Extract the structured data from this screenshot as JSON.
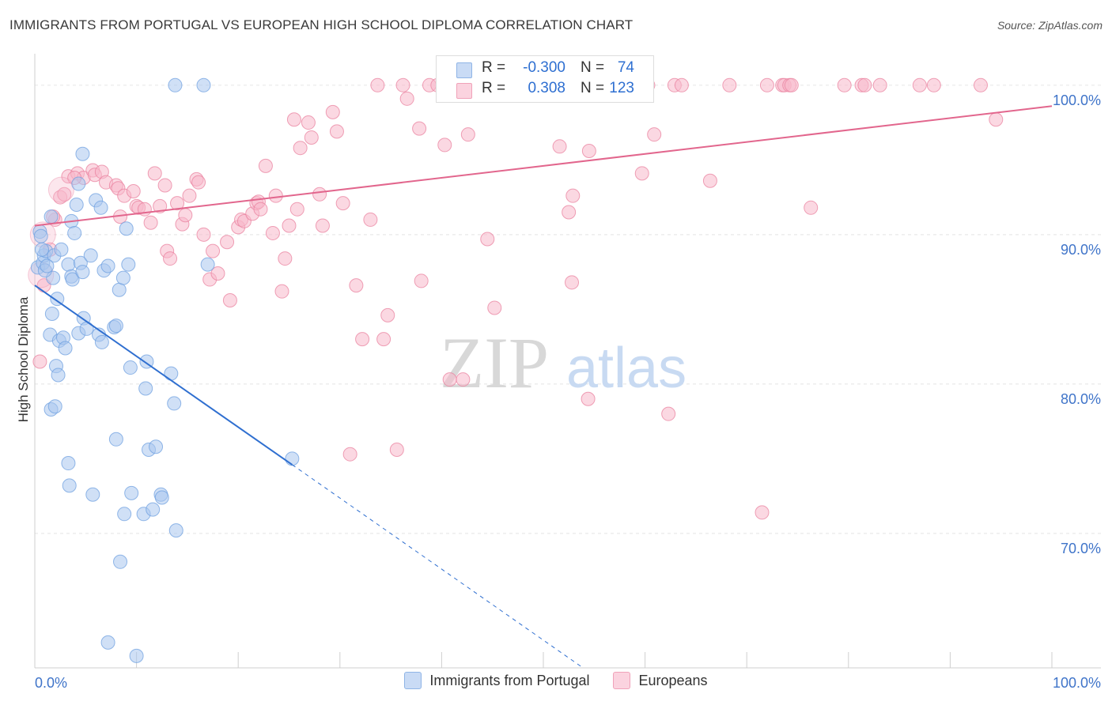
{
  "title": "IMMIGRANTS FROM PORTUGAL VS EUROPEAN HIGH SCHOOL DIPLOMA CORRELATION CHART",
  "source": "Source: ZipAtlas.com",
  "watermark": {
    "zip": "ZIP",
    "atlas": "atlas"
  },
  "stats": {
    "series1": {
      "r_label": "R =",
      "r_value": "-0.300",
      "n_label": "N =",
      "n_value": "74",
      "color": "#a9c6ef"
    },
    "series2": {
      "r_label": "R =",
      "r_value": "0.308",
      "n_label": "N =",
      "n_value": "123",
      "color": "#f7b8cb"
    }
  },
  "legend": {
    "series1": "Immigrants from Portugal",
    "series2": "Europeans"
  },
  "chart_data": {
    "type": "scatter",
    "title": "IMMIGRANTS FROM PORTUGAL VS EUROPEAN HIGH SCHOOL DIPLOMA CORRELATION CHART",
    "xlabel": "",
    "ylabel": "High School Diploma",
    "xlim": [
      0,
      100
    ],
    "ylim": [
      61,
      102
    ],
    "x_tick_labels": [
      "0.0%",
      "100.0%"
    ],
    "y_ticks": [
      70,
      80,
      90,
      100
    ],
    "y_tick_labels": [
      "70.0%",
      "80.0%",
      "90.0%",
      "100.0%"
    ],
    "grid": true,
    "series": [
      {
        "name": "Immigrants from Portugal",
        "color": "#6fa0e0",
        "fill": "#a9c6ef",
        "trend": {
          "x": [
            0,
            25.3
          ],
          "y": [
            86.6,
            74.6
          ],
          "dashed_to": [
            53.9,
            61.0
          ]
        },
        "points": [
          [
            0.3,
            87.8
          ],
          [
            0.8,
            88.1
          ],
          [
            0.5,
            90.2
          ],
          [
            0.6,
            89.9
          ],
          [
            0.9,
            88.6
          ],
          [
            1.1,
            88.9
          ],
          [
            1.6,
            91.2
          ],
          [
            1.9,
            88.6
          ],
          [
            1.5,
            83.3
          ],
          [
            1.7,
            84.7
          ],
          [
            1.8,
            87.1
          ],
          [
            2.2,
            85.7
          ],
          [
            2.4,
            82.9
          ],
          [
            2.1,
            81.2
          ],
          [
            2.3,
            80.6
          ],
          [
            1.6,
            78.3
          ],
          [
            2.0,
            78.5
          ],
          [
            3.3,
            88.0
          ],
          [
            3.6,
            90.9
          ],
          [
            3.9,
            90.1
          ],
          [
            4.1,
            92.0
          ],
          [
            4.3,
            93.4
          ],
          [
            4.7,
            95.4
          ],
          [
            3.6,
            87.2
          ],
          [
            3.7,
            87.0
          ],
          [
            4.5,
            88.1
          ],
          [
            4.7,
            87.5
          ],
          [
            5.5,
            88.6
          ],
          [
            4.3,
            83.4
          ],
          [
            4.8,
            84.4
          ],
          [
            5.1,
            83.7
          ],
          [
            6.3,
            83.3
          ],
          [
            6.6,
            82.8
          ],
          [
            6.0,
            92.3
          ],
          [
            6.5,
            91.8
          ],
          [
            6.8,
            87.6
          ],
          [
            7.2,
            87.9
          ],
          [
            7.8,
            83.8
          ],
          [
            8.0,
            83.9
          ],
          [
            8.3,
            86.3
          ],
          [
            8.7,
            87.1
          ],
          [
            9.0,
            90.4
          ],
          [
            9.2,
            88.0
          ],
          [
            9.4,
            81.1
          ],
          [
            11.0,
            81.5
          ],
          [
            10.9,
            79.7
          ],
          [
            11.2,
            75.6
          ],
          [
            11.9,
            75.8
          ],
          [
            12.4,
            72.6
          ],
          [
            12.5,
            72.4
          ],
          [
            13.4,
            80.7
          ],
          [
            13.7,
            78.7
          ],
          [
            13.9,
            70.2
          ],
          [
            8.0,
            76.3
          ],
          [
            3.3,
            74.7
          ],
          [
            3.4,
            73.2
          ],
          [
            5.7,
            72.6
          ],
          [
            8.8,
            71.3
          ],
          [
            9.5,
            72.7
          ],
          [
            10.7,
            71.3
          ],
          [
            11.6,
            71.6
          ],
          [
            8.4,
            68.1
          ],
          [
            7.2,
            62.7
          ],
          [
            10.0,
            61.8
          ],
          [
            17.0,
            88.0
          ],
          [
            16.6,
            100
          ],
          [
            13.8,
            100
          ],
          [
            25.3,
            75.0
          ],
          [
            1.0,
            87.6
          ],
          [
            2.8,
            83.1
          ],
          [
            3.0,
            82.4
          ],
          [
            2.6,
            89.0
          ],
          [
            0.7,
            89.0
          ],
          [
            1.2,
            87.9
          ]
        ]
      },
      {
        "name": "Europeans",
        "color": "#e9829f",
        "fill": "#f7b8cb",
        "trend": {
          "x": [
            0,
            100
          ],
          "y": [
            90.6,
            98.6
          ]
        },
        "points": [
          [
            0.5,
            81.5
          ],
          [
            0.9,
            86.6
          ],
          [
            1.5,
            89.0
          ],
          [
            2.0,
            91.0
          ],
          [
            2.5,
            92.5
          ],
          [
            3.3,
            93.9
          ],
          [
            4.2,
            94.1
          ],
          [
            4.8,
            93.8
          ],
          [
            5.7,
            94.3
          ],
          [
            5.9,
            94.0
          ],
          [
            6.6,
            94.2
          ],
          [
            7.0,
            93.5
          ],
          [
            8.0,
            93.3
          ],
          [
            8.2,
            93.1
          ],
          [
            8.4,
            91.2
          ],
          [
            8.8,
            92.6
          ],
          [
            9.7,
            92.9
          ],
          [
            10.0,
            91.9
          ],
          [
            10.2,
            91.8
          ],
          [
            10.8,
            91.7
          ],
          [
            11.8,
            94.1
          ],
          [
            11.4,
            90.8
          ],
          [
            12.3,
            91.9
          ],
          [
            12.8,
            93.3
          ],
          [
            13.0,
            88.9
          ],
          [
            13.3,
            88.4
          ],
          [
            14.0,
            92.1
          ],
          [
            14.5,
            90.7
          ],
          [
            14.8,
            91.3
          ],
          [
            15.2,
            92.6
          ],
          [
            15.9,
            93.7
          ],
          [
            16.1,
            93.5
          ],
          [
            16.6,
            90.0
          ],
          [
            17.2,
            87.0
          ],
          [
            17.5,
            88.9
          ],
          [
            18.0,
            87.4
          ],
          [
            18.9,
            89.5
          ],
          [
            19.2,
            85.6
          ],
          [
            20.0,
            90.5
          ],
          [
            20.3,
            91.0
          ],
          [
            20.6,
            90.9
          ],
          [
            21.4,
            91.4
          ],
          [
            21.8,
            92.1
          ],
          [
            22.0,
            92.2
          ],
          [
            22.2,
            91.7
          ],
          [
            22.7,
            94.6
          ],
          [
            23.4,
            90.1
          ],
          [
            23.7,
            92.6
          ],
          [
            24.3,
            86.2
          ],
          [
            24.6,
            88.4
          ],
          [
            25.0,
            90.6
          ],
          [
            25.5,
            97.7
          ],
          [
            25.8,
            91.7
          ],
          [
            26.1,
            95.8
          ],
          [
            26.9,
            97.5
          ],
          [
            27.2,
            96.5
          ],
          [
            28.0,
            92.7
          ],
          [
            28.3,
            90.6
          ],
          [
            29.3,
            98.2
          ],
          [
            29.7,
            96.9
          ],
          [
            30.3,
            92.1
          ],
          [
            31.0,
            75.3
          ],
          [
            31.6,
            86.6
          ],
          [
            32.2,
            83.0
          ],
          [
            33.0,
            91.0
          ],
          [
            34.3,
            83.0
          ],
          [
            34.7,
            84.6
          ],
          [
            35.6,
            75.6
          ],
          [
            36.6,
            99.1
          ],
          [
            37.8,
            97.1
          ],
          [
            38.0,
            86.9
          ],
          [
            38.8,
            100
          ],
          [
            39.6,
            100
          ],
          [
            40.3,
            96.0
          ],
          [
            40.8,
            80.3
          ],
          [
            42.1,
            80.3
          ],
          [
            42.6,
            96.7
          ],
          [
            44.5,
            89.7
          ],
          [
            45.2,
            85.1
          ],
          [
            46.9,
            100
          ],
          [
            49.1,
            100
          ],
          [
            50.0,
            100
          ],
          [
            50.6,
            100
          ],
          [
            51.6,
            95.9
          ],
          [
            52.5,
            91.5
          ],
          [
            52.8,
            86.8
          ],
          [
            52.9,
            92.6
          ],
          [
            54.4,
            79.0
          ],
          [
            54.5,
            95.6
          ],
          [
            56.2,
            100
          ],
          [
            57.7,
            100
          ],
          [
            59.7,
            94.1
          ],
          [
            60.9,
            96.7
          ],
          [
            62.3,
            78.0
          ],
          [
            62.9,
            100
          ],
          [
            63.6,
            100
          ],
          [
            66.4,
            93.6
          ],
          [
            71.5,
            71.4
          ],
          [
            73.5,
            100
          ],
          [
            73.7,
            100
          ],
          [
            74.2,
            100
          ],
          [
            76.3,
            91.8
          ],
          [
            81.3,
            100
          ],
          [
            81.6,
            100
          ],
          [
            83.1,
            100
          ],
          [
            87.0,
            100
          ],
          [
            88.4,
            100
          ],
          [
            93.0,
            100
          ],
          [
            94.5,
            97.7
          ],
          [
            33.7,
            100
          ],
          [
            36.2,
            100
          ],
          [
            41.8,
            100
          ],
          [
            44.0,
            100
          ],
          [
            46.3,
            100
          ],
          [
            48.3,
            100
          ],
          [
            57.0,
            100
          ],
          [
            60.3,
            100
          ],
          [
            68.3,
            100
          ],
          [
            72.0,
            100
          ],
          [
            74.4,
            100
          ],
          [
            79.6,
            100
          ],
          [
            1.8,
            91.2
          ],
          [
            2.9,
            92.7
          ],
          [
            3.9,
            93.8
          ]
        ]
      }
    ]
  }
}
